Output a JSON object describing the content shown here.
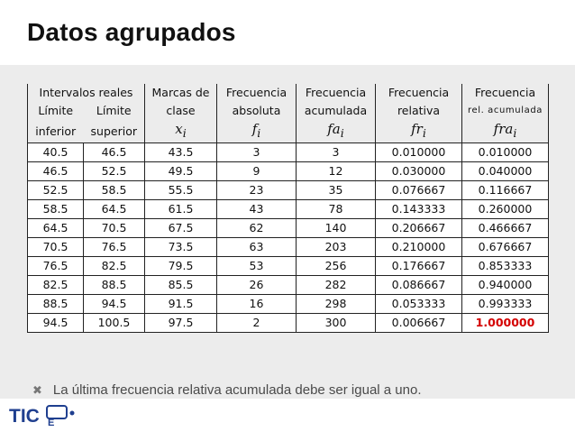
{
  "title": "Datos agrupados",
  "table": {
    "header_row1": [
      "Intervalos reales",
      "Marcas de",
      "Frecuencia",
      "Frecuencia",
      "Frecuencia",
      "Frecuencia"
    ],
    "header_row2": [
      "Límite",
      "Límite",
      "clase",
      "absoluta",
      "acumulada",
      "relativa",
      "rel. acumulada"
    ],
    "header_row3": [
      "inferior",
      "superior"
    ],
    "symbols": {
      "x": "x",
      "x_sub": "i",
      "f": "f",
      "f_sub": "i",
      "fa": "fa",
      "fa_sub": "i",
      "fr": "fr",
      "fr_sub": "i",
      "fra": "fra",
      "fra_sub": "i"
    },
    "rows": [
      [
        "40.5",
        "46.5",
        "43.5",
        "3",
        "3",
        "0.010000",
        "0.010000"
      ],
      [
        "46.5",
        "52.5",
        "49.5",
        "9",
        "12",
        "0.030000",
        "0.040000"
      ],
      [
        "52.5",
        "58.5",
        "55.5",
        "23",
        "35",
        "0.076667",
        "0.116667"
      ],
      [
        "58.5",
        "64.5",
        "61.5",
        "43",
        "78",
        "0.143333",
        "0.260000"
      ],
      [
        "64.5",
        "70.5",
        "67.5",
        "62",
        "140",
        "0.206667",
        "0.466667"
      ],
      [
        "70.5",
        "76.5",
        "73.5",
        "63",
        "203",
        "0.210000",
        "0.676667"
      ],
      [
        "76.5",
        "82.5",
        "79.5",
        "53",
        "256",
        "0.176667",
        "0.853333"
      ],
      [
        "82.5",
        "88.5",
        "85.5",
        "26",
        "282",
        "0.086667",
        "0.940000"
      ],
      [
        "88.5",
        "94.5",
        "91.5",
        "16",
        "298",
        "0.053333",
        "0.993333"
      ],
      [
        "94.5",
        "100.5",
        "97.5",
        "2",
        "300",
        "0.006667",
        "1.000000"
      ]
    ],
    "highlight_color": "#d40000"
  },
  "note": "La última frecuencia relativa acumulada debe ser igual a uno.",
  "logo": {
    "text": "TIC",
    "sub": "E"
  },
  "colors": {
    "panel": "#ececec",
    "logo_blue": "#1f3f8f"
  }
}
